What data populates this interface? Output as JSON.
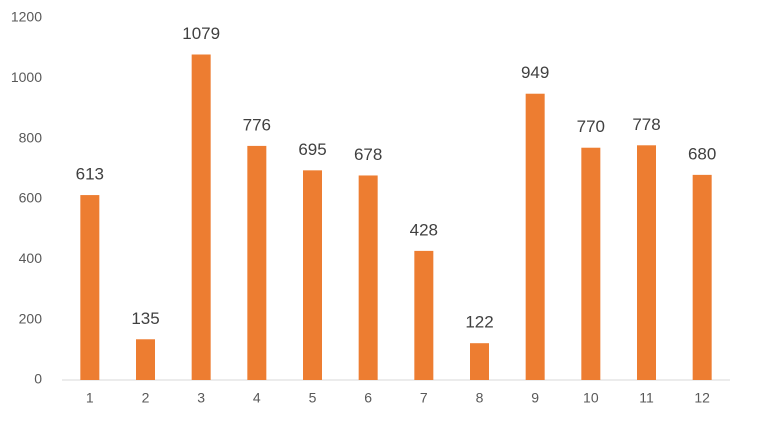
{
  "chart_data": {
    "type": "bar",
    "categories": [
      "1",
      "2",
      "3",
      "4",
      "5",
      "6",
      "7",
      "8",
      "9",
      "10",
      "11",
      "12"
    ],
    "values": [
      613,
      135,
      1079,
      776,
      695,
      678,
      428,
      122,
      949,
      770,
      778,
      680
    ],
    "color": "#ed7d31",
    "ylim": [
      0,
      1200
    ],
    "yticks": [
      0,
      200,
      400,
      600,
      800,
      1000,
      1200
    ],
    "grid": false
  }
}
